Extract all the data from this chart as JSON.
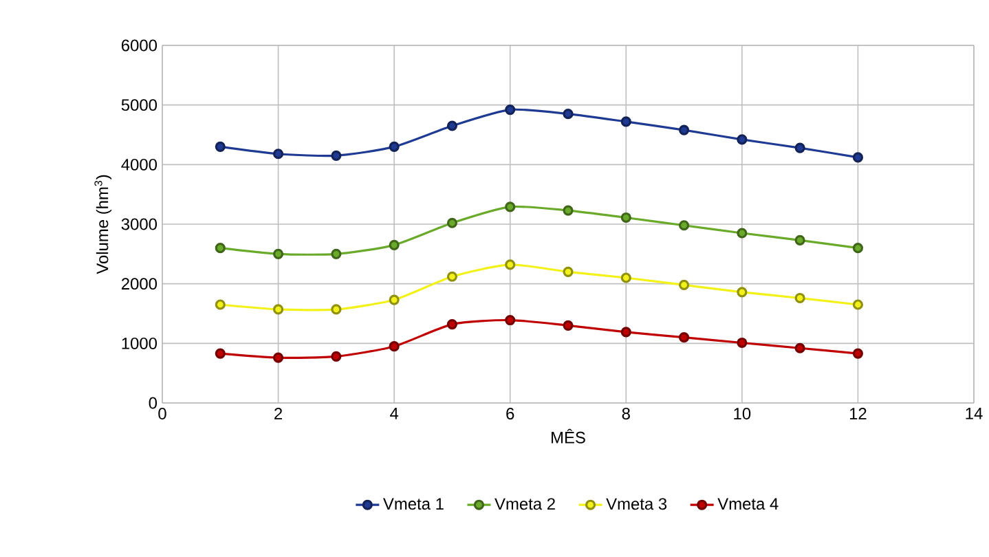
{
  "chart_data": {
    "type": "line",
    "xlabel": "MÊS",
    "ylabel": "Volume (hm$^{3}$)",
    "x": [
      1,
      2,
      3,
      4,
      5,
      6,
      7,
      8,
      9,
      10,
      11,
      12
    ],
    "series": [
      {
        "name": "Vmeta 1",
        "color": "#1f3a93",
        "values": [
          4300,
          4180,
          4150,
          4300,
          4650,
          4920,
          4850,
          4720,
          4580,
          4420,
          4280,
          4120
        ]
      },
      {
        "name": "Vmeta 2",
        "color": "#6aaa2a",
        "values": [
          2600,
          2500,
          2500,
          2650,
          3020,
          3290,
          3230,
          3110,
          2980,
          2850,
          2730,
          2600
        ]
      },
      {
        "name": "Vmeta 3",
        "color": "#f2f21a",
        "values": [
          1650,
          1570,
          1570,
          1730,
          2120,
          2320,
          2200,
          2100,
          1980,
          1860,
          1760,
          1650
        ]
      },
      {
        "name": "Vmeta 4",
        "color": "#c00000",
        "values": [
          830,
          760,
          780,
          950,
          1320,
          1390,
          1300,
          1190,
          1100,
          1010,
          920,
          830
        ]
      }
    ],
    "xlim": [
      0,
      14
    ],
    "xticks": [
      0,
      2,
      4,
      6,
      8,
      10,
      12,
      14
    ],
    "ylim": [
      0,
      6000
    ],
    "yticks": [
      0,
      1000,
      2000,
      3000,
      4000,
      5000,
      6000
    ],
    "grid": true,
    "legend": "bottom",
    "marker": "circle",
    "line_style": "solid"
  }
}
